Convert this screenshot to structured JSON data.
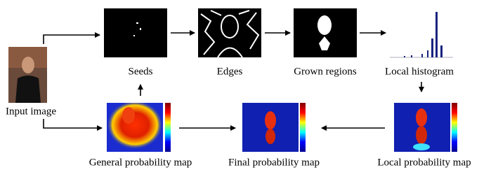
{
  "input": {
    "label": "Input image"
  },
  "steps": [
    {
      "label": "Seeds"
    },
    {
      "label": "Edges"
    },
    {
      "label": "Grown regions"
    },
    {
      "label": "Local histogram"
    }
  ],
  "maps": [
    {
      "label": "General probability map"
    },
    {
      "label": "Final probability map"
    },
    {
      "label": "Local probability map"
    }
  ]
}
